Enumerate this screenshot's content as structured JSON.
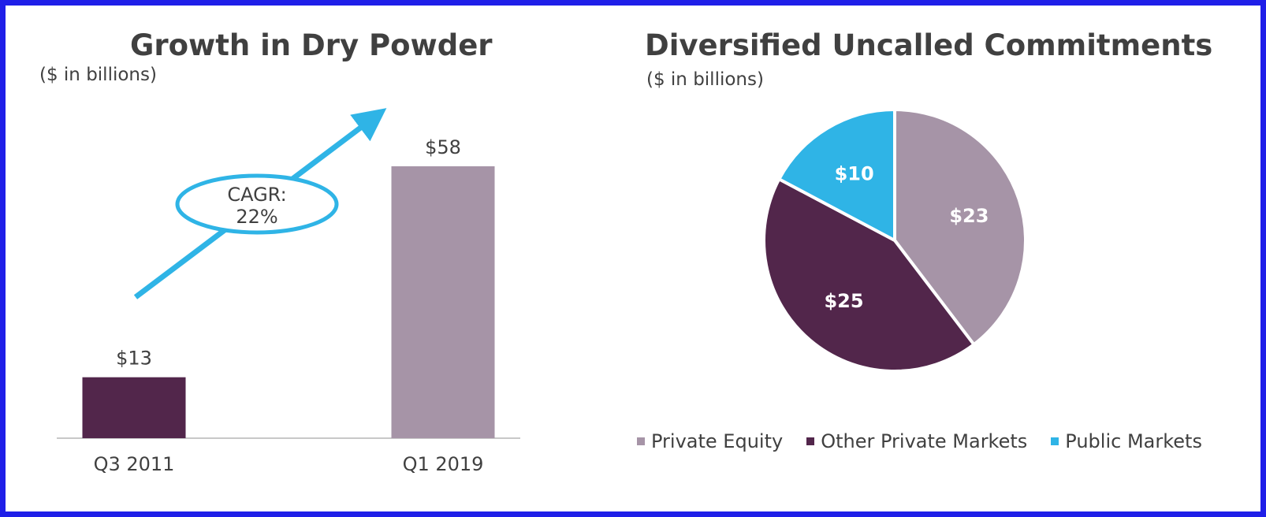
{
  "colors": {
    "frame": "#1f1fe8",
    "text": "#404040",
    "dark_purple": "#52264b",
    "mauve": "#a694a7",
    "cyan": "#2fb4e6",
    "axis": "#c8c8c8"
  },
  "left_panel": {
    "title": "Growth in Dry Powder",
    "subtitle": "($ in billions)",
    "annotation_line1": "CAGR:",
    "annotation_line2": "22%"
  },
  "right_panel": {
    "title": "Diversified Uncalled Commitments",
    "subtitle": "($ in billions)"
  },
  "chart_data": [
    {
      "type": "bar",
      "title": "Growth in Dry Powder",
      "subtitle": "($ in billions)",
      "categories": [
        "Q3 2011",
        "Q1 2019"
      ],
      "values": [
        13,
        58
      ],
      "data_labels": [
        "$13",
        "$58"
      ],
      "bar_colors": [
        "#52264b",
        "#a694a7"
      ],
      "annotation": "CAGR: 22%",
      "ylim": [
        0,
        65
      ],
      "grid": false
    },
    {
      "type": "pie",
      "title": "Diversified Uncalled Commitments",
      "subtitle": "($ in billions)",
      "labels": [
        "Private Equity",
        "Other Private Markets",
        "Public Markets"
      ],
      "values": [
        23,
        25,
        10
      ],
      "data_labels": [
        "$23",
        "$25",
        "$10"
      ],
      "colors": [
        "#a694a7",
        "#52264b",
        "#2fb4e6"
      ],
      "legend_position": "bottom"
    }
  ]
}
